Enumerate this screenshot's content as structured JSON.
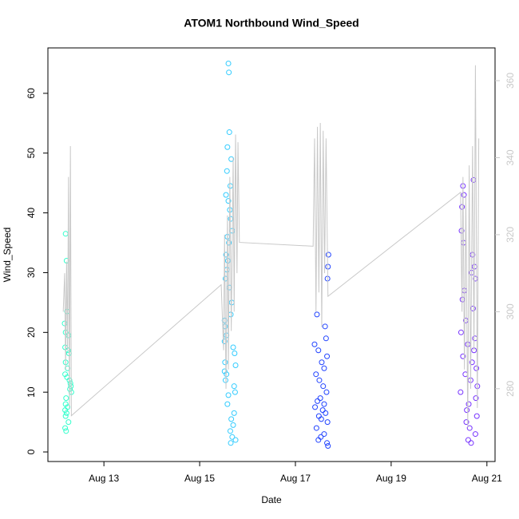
{
  "chart_data": {
    "type": "scatter",
    "title": "ATOM1 Northbound Wind_Speed",
    "x_label": "Date",
    "y_label": "Wind_Speed",
    "xlim": [
      11.83,
      21.17
    ],
    "xticks": [
      {
        "value": 13,
        "label": "Aug 13"
      },
      {
        "value": 15,
        "label": "Aug 15"
      },
      {
        "value": 17,
        "label": "Aug 17"
      },
      {
        "value": 19,
        "label": "Aug 19"
      },
      {
        "value": 21,
        "label": "Aug 21"
      }
    ],
    "ylim": [
      -1.6,
      67.6
    ],
    "yticks": [
      0,
      10,
      20,
      30,
      40,
      50,
      60
    ],
    "y2lim": [
      261.1,
      368.5
    ],
    "y2ticks": [
      280,
      300,
      320,
      340,
      360
    ],
    "y2_color": "#c8c8c8",
    "series": [
      {
        "color": "#33ffcc",
        "x": [
          12.2,
          12.22,
          12.23,
          12.18,
          12.2,
          12.26,
          12.19,
          12.25,
          12.27,
          12.2,
          12.24,
          12.19,
          12.23,
          12.28,
          12.3,
          12.31,
          12.29,
          12.32,
          12.21,
          12.2,
          12.24,
          12.19,
          12.22,
          12.2,
          12.26,
          12.19,
          12.21
        ],
        "values": [
          36.5,
          32,
          23.5,
          21.5,
          20,
          19.5,
          17.5,
          17,
          16.5,
          15,
          14,
          13,
          12.5,
          12,
          11.5,
          11,
          10.5,
          10,
          9,
          8,
          7.5,
          7,
          6.5,
          6,
          5,
          4,
          3.5
        ]
      },
      {
        "color": "#33ccff",
        "x": [
          15.6,
          15.61,
          15.62,
          15.58,
          15.66,
          15.57,
          15.64,
          15.55,
          15.6,
          15.63,
          15.65,
          15.68,
          15.58,
          15.61,
          15.55,
          15.59,
          15.57,
          15.54,
          15.62,
          15.67,
          15.65,
          15.52,
          15.53,
          15.56,
          15.52,
          15.7,
          15.73,
          15.53,
          15.75,
          15.52,
          15.56,
          15.54,
          15.72,
          15.74,
          15.6,
          15.58,
          15.72,
          15.66,
          15.7,
          15.64,
          15.68,
          15.75,
          15.65
        ],
        "values": [
          65,
          63.5,
          53.5,
          51,
          49,
          47,
          44.5,
          43,
          42,
          40.5,
          39,
          37,
          36,
          35,
          33,
          32,
          30.5,
          29,
          27.5,
          25,
          23,
          22,
          21,
          19.5,
          18.5,
          17.5,
          16.5,
          15,
          14.5,
          13.5,
          13,
          12,
          11,
          10,
          9.5,
          8,
          6.5,
          5.5,
          4.5,
          3.5,
          2.5,
          2,
          1.5
        ]
      },
      {
        "color": "#2244ff",
        "x": [
          17.69,
          17.68,
          17.67,
          17.45,
          17.62,
          17.64,
          17.4,
          17.48,
          17.66,
          17.55,
          17.6,
          17.43,
          17.5,
          17.58,
          17.65,
          17.52,
          17.46,
          17.6,
          17.41,
          17.57,
          17.63,
          17.49,
          17.54,
          17.67,
          17.44,
          17.6,
          17.53,
          17.48,
          17.66,
          17.68
        ],
        "values": [
          33,
          31,
          29,
          23,
          21,
          19,
          18,
          17,
          16,
          15,
          14,
          13,
          12,
          11,
          10,
          9,
          8.5,
          8,
          7.5,
          7,
          6.5,
          6,
          5.5,
          5,
          4,
          3,
          2.5,
          2,
          1.5,
          1
        ]
      },
      {
        "color": "#7733ff",
        "x": [
          20.72,
          20.5,
          20.52,
          20.48,
          20.47,
          20.51,
          20.7,
          20.74,
          20.68,
          20.76,
          20.53,
          20.49,
          20.71,
          20.56,
          20.46,
          20.75,
          20.6,
          20.73,
          20.5,
          20.69,
          20.78,
          20.55,
          20.66,
          20.8,
          20.45,
          20.77,
          20.62,
          20.58,
          20.79,
          20.57,
          20.64,
          20.76,
          20.61,
          20.67
        ],
        "values": [
          45.5,
          44.5,
          43,
          41,
          37,
          35,
          33,
          31,
          30,
          29,
          27,
          25.5,
          24,
          22,
          20,
          19,
          18,
          17,
          16,
          15,
          14,
          13,
          12,
          11,
          10,
          9,
          8,
          7,
          6,
          5,
          4,
          3,
          2,
          1.5
        ]
      },
      {
        "color": "#c8c8c8",
        "axis": "y2",
        "x": [
          12.15,
          12.18,
          12.2,
          12.22,
          12.24,
          12.26,
          12.28,
          12.3,
          12.32,
          15.45,
          15.5,
          15.52,
          15.55,
          15.58,
          15.6,
          15.63,
          15.66,
          15.7,
          15.72,
          15.75,
          15.78,
          15.8,
          15.83,
          17.37,
          17.4,
          17.43,
          17.46,
          17.49,
          17.52,
          17.55,
          17.58,
          17.61,
          17.64,
          17.68,
          20.45,
          20.48,
          20.5,
          20.53,
          20.56,
          20.6,
          20.63,
          20.66,
          20.7,
          20.73,
          20.76,
          20.8,
          20.83
        ],
        "values": [
          300,
          310,
          285,
          313,
          290,
          335,
          275,
          343,
          273,
          307,
          290,
          320,
          280,
          325,
          285,
          335,
          295,
          340,
          300,
          346,
          310,
          344,
          318,
          317,
          345,
          300,
          348,
          305,
          349,
          296,
          347,
          310,
          345,
          304,
          331,
          300,
          335,
          285,
          330,
          270,
          338,
          280,
          343,
          290,
          364,
          275,
          345
        ]
      }
    ]
  }
}
